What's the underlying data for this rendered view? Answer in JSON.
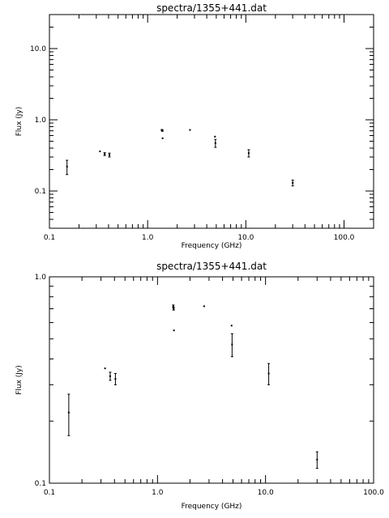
{
  "chart_data": [
    {
      "type": "scatter",
      "title": "spectra/1355+441.dat",
      "xlabel": "Frequency (GHz)",
      "ylabel": "Flux (Jy)",
      "xscale": "log",
      "yscale": "log",
      "xlim": [
        0.1,
        200
      ],
      "ylim": [
        0.03,
        30
      ],
      "xticks": [
        {
          "value": 0.1,
          "label": "0.1"
        },
        {
          "value": 1,
          "label": "1.0"
        },
        {
          "value": 10,
          "label": "10.0"
        },
        {
          "value": 100,
          "label": "100.0"
        }
      ],
      "yticks": [
        {
          "value": 0.1,
          "label": "0.1"
        },
        {
          "value": 1,
          "label": "1.0"
        },
        {
          "value": 10,
          "label": "10.0"
        }
      ],
      "points": [
        {
          "x": 0.151,
          "y": 0.22,
          "err": 0.05
        },
        {
          "x": 0.327,
          "y": 0.36,
          "err": 0.0
        },
        {
          "x": 0.365,
          "y": 0.33,
          "err": 0.015
        },
        {
          "x": 0.408,
          "y": 0.32,
          "err": 0.02
        },
        {
          "x": 1.4,
          "y": 0.72,
          "err": 0.01
        },
        {
          "x": 1.41,
          "y": 0.7,
          "err": 0.01
        },
        {
          "x": 1.42,
          "y": 0.55,
          "err": 0.0
        },
        {
          "x": 2.7,
          "y": 0.72,
          "err": 0.0
        },
        {
          "x": 4.85,
          "y": 0.58,
          "err": 0.0
        },
        {
          "x": 4.9,
          "y": 0.47,
          "err": 0.06
        },
        {
          "x": 10.7,
          "y": 0.34,
          "err": 0.04
        },
        {
          "x": 30.0,
          "y": 0.13,
          "err": 0.012
        }
      ]
    },
    {
      "type": "scatter",
      "title": "spectra/1355+441.dat",
      "xlabel": "Frequency (GHz)",
      "ylabel": "Flux (Jy)",
      "xscale": "log",
      "yscale": "log",
      "xlim": [
        0.1,
        100
      ],
      "ylim": [
        0.1,
        1.0
      ],
      "xticks": [
        {
          "value": 0.1,
          "label": "0.1"
        },
        {
          "value": 1,
          "label": "1.0"
        },
        {
          "value": 10,
          "label": "10.0"
        },
        {
          "value": 100,
          "label": "100.0"
        }
      ],
      "yticks": [
        {
          "value": 0.1,
          "label": "0.1"
        },
        {
          "value": 1,
          "label": "1.0"
        }
      ],
      "points": [
        {
          "x": 0.151,
          "y": 0.22,
          "err": 0.05
        },
        {
          "x": 0.327,
          "y": 0.36,
          "err": 0.0
        },
        {
          "x": 0.365,
          "y": 0.33,
          "err": 0.015
        },
        {
          "x": 0.408,
          "y": 0.32,
          "err": 0.02
        },
        {
          "x": 1.4,
          "y": 0.72,
          "err": 0.01
        },
        {
          "x": 1.41,
          "y": 0.7,
          "err": 0.01
        },
        {
          "x": 1.42,
          "y": 0.55,
          "err": 0.0
        },
        {
          "x": 2.7,
          "y": 0.72,
          "err": 0.0
        },
        {
          "x": 4.85,
          "y": 0.58,
          "err": 0.0
        },
        {
          "x": 4.9,
          "y": 0.47,
          "err": 0.06
        },
        {
          "x": 10.7,
          "y": 0.34,
          "err": 0.04
        },
        {
          "x": 30.0,
          "y": 0.13,
          "err": 0.012
        }
      ]
    }
  ]
}
